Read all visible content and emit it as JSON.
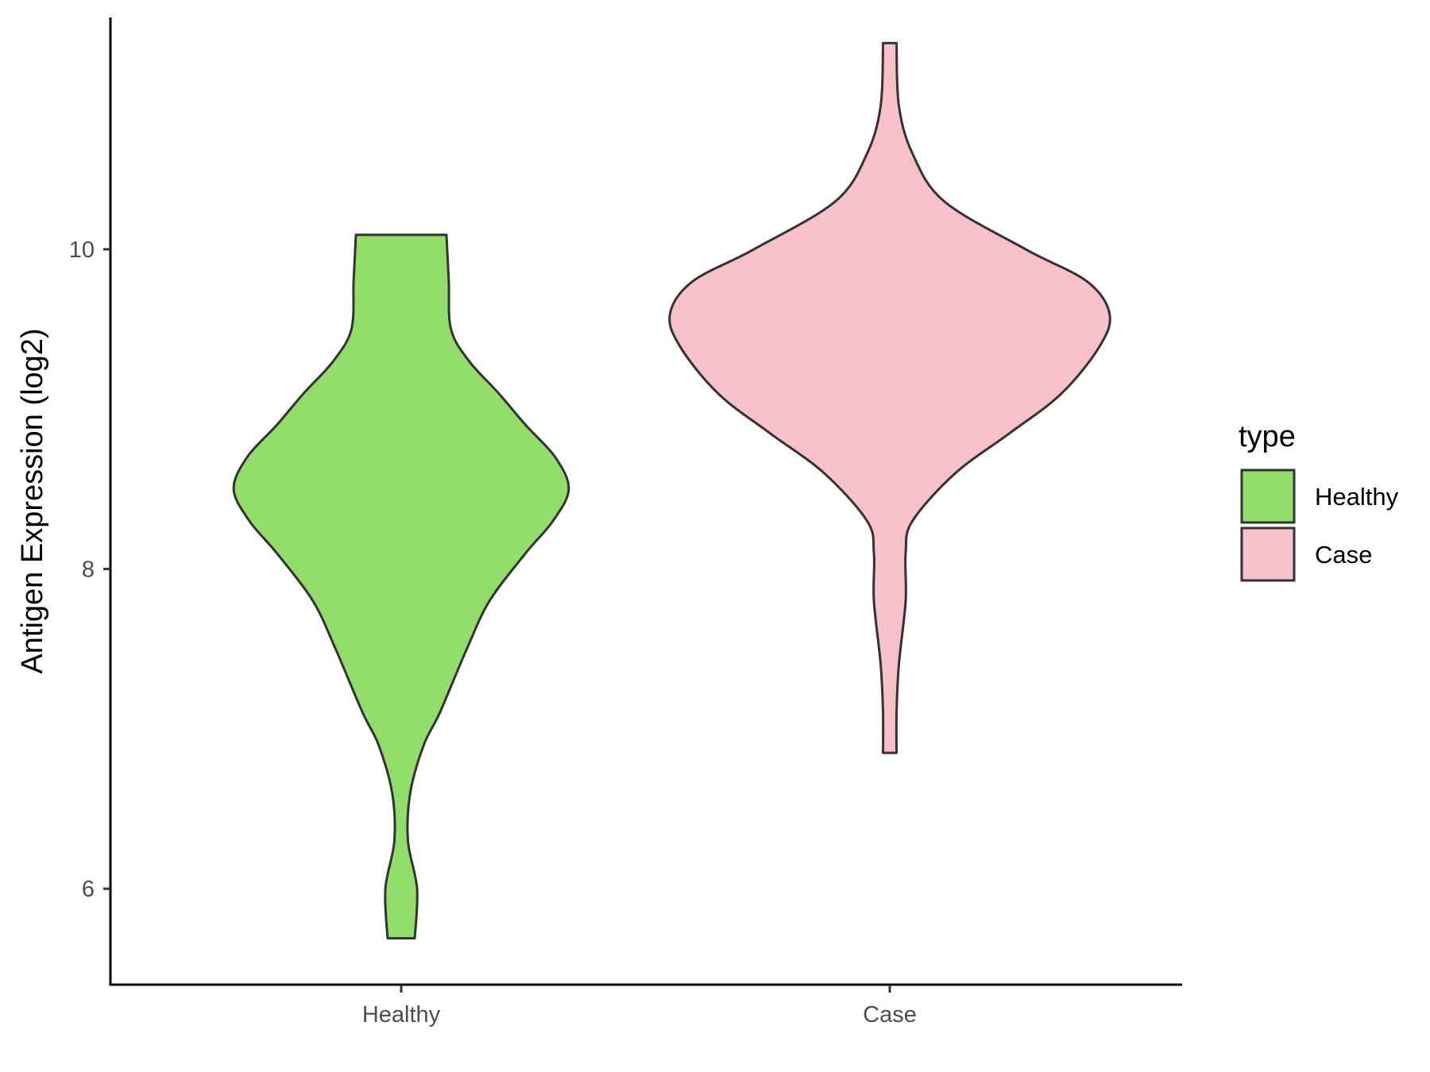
{
  "chart_data": {
    "type": "violin",
    "title": "",
    "xlabel": "",
    "ylabel": "Antigen Expression (log2)",
    "categories": [
      "Healthy",
      "Case"
    ],
    "ylim": [
      5.4,
      11.45
    ],
    "yticks": [
      6,
      8,
      10
    ],
    "ytick_labels": [
      "6",
      "8",
      "10"
    ],
    "grid": false,
    "legend": {
      "title": "type",
      "position": "right",
      "entries": [
        "Healthy",
        "Case"
      ]
    },
    "series": [
      {
        "name": "Healthy",
        "color": "#93dd6a",
        "min": 5.69,
        "max": 10.09,
        "density_profile": [
          [
            5.69,
            0.06
          ],
          [
            6.0,
            0.07
          ],
          [
            6.3,
            0.03
          ],
          [
            6.6,
            0.04
          ],
          [
            6.9,
            0.1
          ],
          [
            7.1,
            0.17
          ],
          [
            7.5,
            0.29
          ],
          [
            7.8,
            0.39
          ],
          [
            8.1,
            0.55
          ],
          [
            8.3,
            0.67
          ],
          [
            8.5,
            0.74
          ],
          [
            8.7,
            0.68
          ],
          [
            8.9,
            0.55
          ],
          [
            9.1,
            0.43
          ],
          [
            9.3,
            0.3
          ],
          [
            9.5,
            0.22
          ],
          [
            9.8,
            0.21
          ],
          [
            10.09,
            0.2
          ]
        ]
      },
      {
        "name": "Case",
        "color": "#f7c0cb",
        "min": 6.85,
        "max": 11.29,
        "density_profile": [
          [
            6.85,
            0.03
          ],
          [
            7.1,
            0.03
          ],
          [
            7.4,
            0.04
          ],
          [
            7.8,
            0.07
          ],
          [
            8.1,
            0.07
          ],
          [
            8.3,
            0.1
          ],
          [
            8.6,
            0.29
          ],
          [
            8.85,
            0.53
          ],
          [
            9.1,
            0.76
          ],
          [
            9.4,
            0.93
          ],
          [
            9.6,
            0.97
          ],
          [
            9.8,
            0.87
          ],
          [
            10.0,
            0.6
          ],
          [
            10.3,
            0.24
          ],
          [
            10.6,
            0.1
          ],
          [
            10.9,
            0.04
          ],
          [
            11.29,
            0.03
          ]
        ]
      }
    ]
  }
}
